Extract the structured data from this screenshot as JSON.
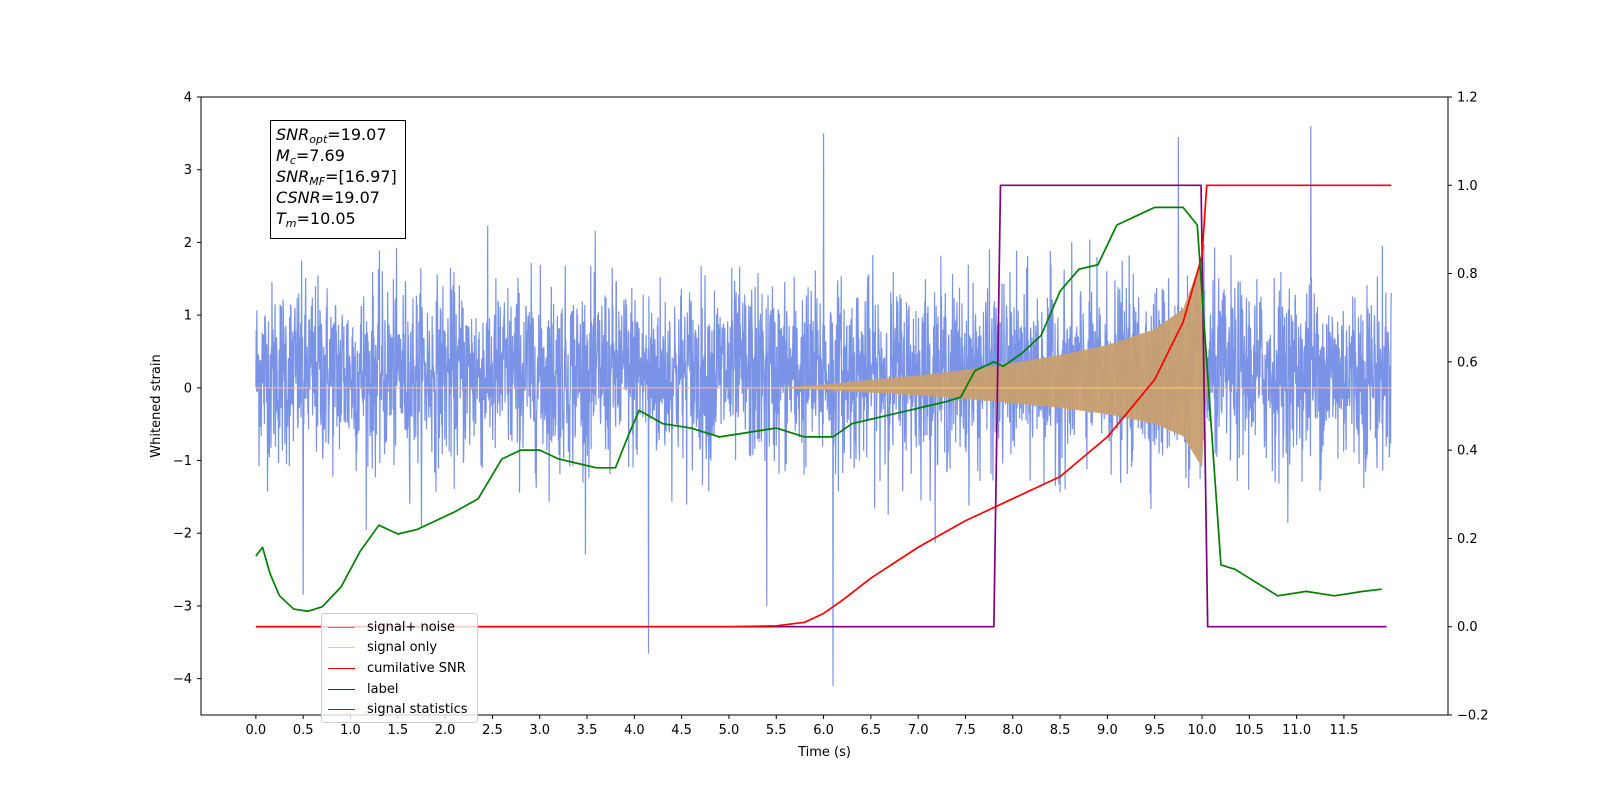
{
  "chart_data": {
    "type": "line",
    "xlabel": "Time (s)",
    "ylabel_left": "Whitened strain",
    "ylabel_right": "",
    "xlim": [
      -0.58,
      12.6
    ],
    "ylim_left": [
      -4.5,
      4.0
    ],
    "ylim_right": [
      -0.2,
      1.2
    ],
    "x_ticks": [
      "0.0",
      "0.5",
      "1.0",
      "1.5",
      "2.0",
      "2.5",
      "3.0",
      "3.5",
      "4.0",
      "4.5",
      "5.0",
      "5.5",
      "6.0",
      "6.5",
      "7.0",
      "7.5",
      "8.0",
      "8.5",
      "9.0",
      "9.5",
      "10.0",
      "10.5",
      "11.0",
      "11.5"
    ],
    "y_ticks_left": [
      "4",
      "3",
      "2",
      "1",
      "0",
      "−1",
      "−2",
      "−3",
      "−4"
    ],
    "y_ticks_right": [
      "1.2",
      "1.0",
      "0.8",
      "0.6",
      "0.4",
      "0.2",
      "0.0",
      "−0.2"
    ],
    "grid": false,
    "legend_position": "lower-left",
    "colors": {
      "signal_noise": "#6b87e3",
      "signal_only": "#c89f6f",
      "cumulative_snr": "#ff0000",
      "label": "#800080",
      "signal_statistics": "#008000"
    },
    "series": [
      {
        "name": "signal+ noise",
        "axis": "left",
        "description_type": "noise",
        "x_range": [
          0.0,
          12.0
        ],
        "typical_envelope": [
          -1.6,
          2.0
        ],
        "notable_spikes": [
          [
            4.15,
            -3.65
          ],
          [
            6.1,
            -4.1
          ],
          [
            6.0,
            3.5
          ],
          [
            11.15,
            3.6
          ],
          [
            9.75,
            3.45
          ],
          [
            0.5,
            -2.85
          ],
          [
            5.4,
            -3.0
          ]
        ]
      },
      {
        "name": "signal only",
        "axis": "left",
        "envelope": {
          "x": [
            0.0,
            5.5,
            6.0,
            6.5,
            7.0,
            7.5,
            8.0,
            8.5,
            9.0,
            9.5,
            9.8,
            10.0,
            10.05,
            12.0
          ],
          "amplitude": [
            0.0,
            0.0,
            0.03,
            0.07,
            0.11,
            0.16,
            0.22,
            0.29,
            0.38,
            0.52,
            0.7,
            1.15,
            0.0,
            0.0
          ]
        }
      },
      {
        "name": "cumilative SNR",
        "axis": "right",
        "x": [
          0.0,
          5.0,
          5.5,
          5.8,
          6.0,
          6.2,
          6.5,
          7.0,
          7.5,
          8.0,
          8.5,
          9.0,
          9.5,
          9.8,
          10.0,
          10.05,
          12.0
        ],
        "y": [
          0.0,
          0.0,
          0.002,
          0.01,
          0.03,
          0.06,
          0.11,
          0.18,
          0.24,
          0.29,
          0.34,
          0.43,
          0.56,
          0.69,
          0.84,
          1.0,
          1.0
        ]
      },
      {
        "name": "label",
        "axis": "right",
        "x": [
          0.0,
          7.8,
          7.87,
          9.99,
          10.06,
          11.95
        ],
        "y": [
          0.0,
          0.0,
          1.0,
          1.0,
          0.0,
          0.0
        ]
      },
      {
        "name": "signal statistics",
        "axis": "right",
        "x": [
          0.0,
          0.07,
          0.15,
          0.25,
          0.4,
          0.55,
          0.7,
          0.9,
          1.1,
          1.3,
          1.5,
          1.7,
          1.9,
          2.1,
          2.35,
          2.6,
          2.8,
          3.0,
          3.2,
          3.4,
          3.6,
          3.8,
          3.95,
          4.05,
          4.3,
          4.6,
          4.9,
          5.2,
          5.5,
          5.8,
          6.1,
          6.3,
          6.5,
          6.7,
          6.9,
          7.1,
          7.3,
          7.45,
          7.6,
          7.8,
          7.9,
          8.1,
          8.3,
          8.5,
          8.7,
          8.9,
          9.1,
          9.3,
          9.5,
          9.65,
          9.8,
          9.95,
          10.05,
          10.2,
          10.35,
          10.5,
          10.8,
          11.1,
          11.4,
          11.7,
          11.9
        ],
        "y": [
          0.16,
          0.18,
          0.12,
          0.07,
          0.04,
          0.035,
          0.045,
          0.09,
          0.17,
          0.23,
          0.21,
          0.22,
          0.24,
          0.26,
          0.29,
          0.38,
          0.4,
          0.4,
          0.38,
          0.37,
          0.36,
          0.36,
          0.44,
          0.49,
          0.46,
          0.45,
          0.43,
          0.44,
          0.45,
          0.43,
          0.43,
          0.46,
          0.47,
          0.48,
          0.49,
          0.5,
          0.51,
          0.52,
          0.58,
          0.6,
          0.59,
          0.62,
          0.66,
          0.76,
          0.81,
          0.82,
          0.91,
          0.93,
          0.95,
          0.95,
          0.95,
          0.91,
          0.6,
          0.14,
          0.13,
          0.11,
          0.07,
          0.08,
          0.07,
          0.08,
          0.085
        ]
      }
    ]
  },
  "annotation": {
    "snr_opt": "=19.07",
    "mc": "=7.69",
    "snr_mf": "=[16.97]",
    "csnr": "=19.07",
    "tm": "=10.05"
  },
  "legend": {
    "items": [
      {
        "label": "signal+ noise",
        "color": "#6b87e3"
      },
      {
        "label": "signal only",
        "color": "#ffc870"
      },
      {
        "label": "cumilative SNR",
        "color": "#ff0000"
      },
      {
        "label": "label",
        "color": "#800080"
      },
      {
        "label": "signal statistics",
        "color": "#008000"
      }
    ]
  }
}
